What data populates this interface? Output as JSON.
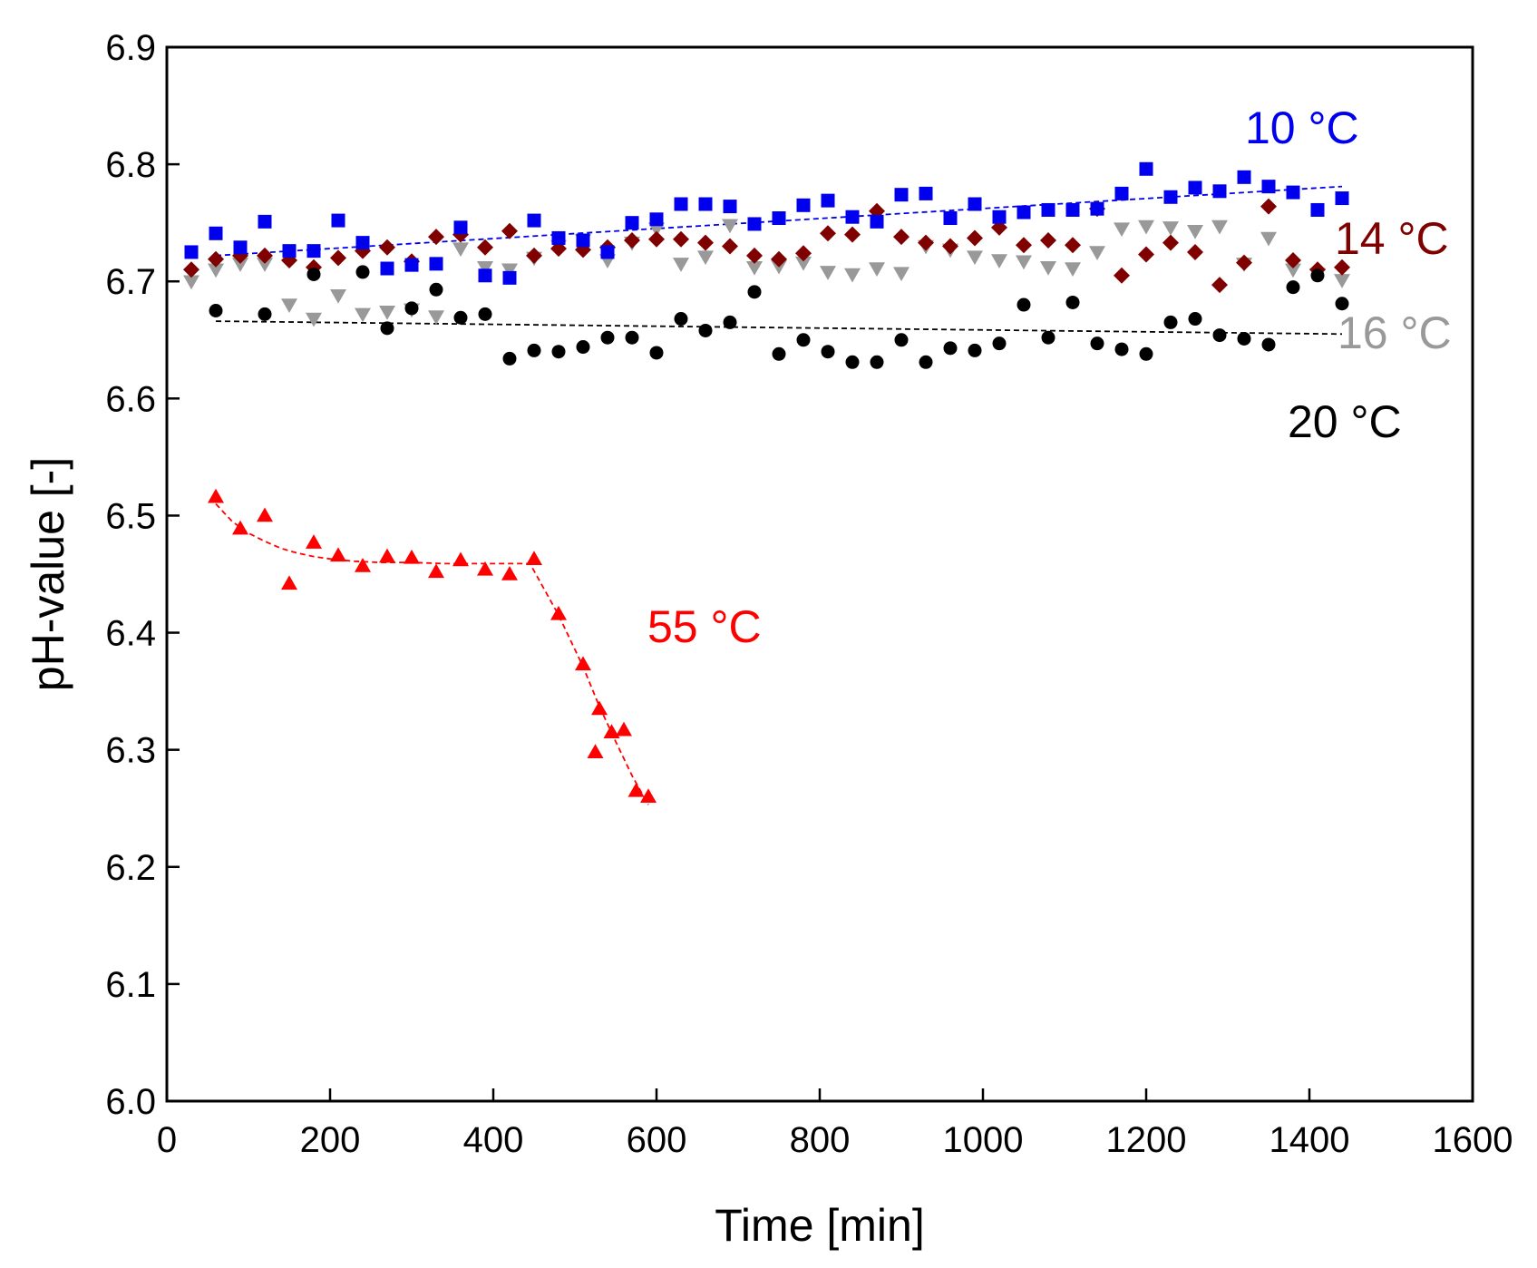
{
  "chart_data": {
    "type": "scatter",
    "title": "",
    "xlabel": "Time [min]",
    "ylabel": "pH-value [-]",
    "xlim": [
      0,
      1600
    ],
    "ylim": [
      6.0,
      6.9
    ],
    "xticks": [
      0,
      200,
      400,
      600,
      800,
      1000,
      1200,
      1400,
      1600
    ],
    "yticks": [
      6.0,
      6.1,
      6.2,
      6.3,
      6.4,
      6.5,
      6.6,
      6.7,
      6.8,
      6.9
    ],
    "grid": false,
    "legend": "direct labels beside each series",
    "series": [
      {
        "name": "10 °C",
        "color": "#0000ee",
        "marker": "square",
        "x": [
          30,
          60,
          90,
          120,
          150,
          180,
          210,
          240,
          270,
          300,
          330,
          360,
          390,
          420,
          450,
          480,
          510,
          540,
          570,
          600,
          630,
          660,
          690,
          720,
          750,
          780,
          810,
          840,
          870,
          900,
          930,
          960,
          990,
          1020,
          1050,
          1080,
          1110,
          1140,
          1170,
          1200,
          1230,
          1260,
          1290,
          1320,
          1350,
          1380,
          1410,
          1440
        ],
        "y": [
          6.725,
          6.741,
          6.729,
          6.751,
          6.726,
          6.726,
          6.752,
          6.733,
          6.711,
          6.714,
          6.715,
          6.746,
          6.705,
          6.703,
          6.752,
          6.737,
          6.735,
          6.725,
          6.75,
          6.753,
          6.766,
          6.766,
          6.764,
          6.749,
          6.754,
          6.765,
          6.769,
          6.755,
          6.751,
          6.774,
          6.775,
          6.754,
          6.766,
          6.755,
          6.759,
          6.761,
          6.761,
          6.762,
          6.775,
          6.796,
          6.772,
          6.78,
          6.777,
          6.789,
          6.781,
          6.776,
          6.761,
          6.771
        ],
        "trend": {
          "x": [
            60,
            1440
          ],
          "y": [
            6.722,
            6.781
          ]
        }
      },
      {
        "name": "14 °C",
        "color": "#800000",
        "marker": "diamond",
        "x": [
          30,
          60,
          90,
          120,
          150,
          180,
          210,
          240,
          270,
          300,
          330,
          360,
          390,
          420,
          450,
          480,
          510,
          540,
          570,
          600,
          630,
          660,
          690,
          720,
          750,
          780,
          810,
          840,
          870,
          900,
          930,
          960,
          990,
          1020,
          1050,
          1080,
          1110,
          1140,
          1170,
          1200,
          1230,
          1260,
          1290,
          1320,
          1350,
          1380,
          1410,
          1440
        ],
        "y": [
          6.71,
          6.719,
          6.722,
          6.722,
          6.718,
          6.712,
          6.72,
          6.726,
          6.729,
          6.717,
          6.738,
          6.74,
          6.729,
          6.743,
          6.722,
          6.728,
          6.727,
          6.729,
          6.735,
          6.736,
          6.736,
          6.733,
          6.73,
          6.722,
          6.719,
          6.724,
          6.741,
          6.74,
          6.76,
          6.738,
          6.733,
          6.73,
          6.737,
          6.746,
          6.731,
          6.735,
          6.731,
          6.762,
          6.705,
          6.723,
          6.733,
          6.725,
          6.697,
          6.716,
          6.764,
          6.718,
          6.71,
          6.712
        ]
      },
      {
        "name": "16 °C",
        "color": "#999999",
        "marker": "triangle-down",
        "x": [
          30,
          60,
          90,
          120,
          150,
          180,
          210,
          240,
          270,
          300,
          330,
          360,
          390,
          420,
          450,
          480,
          510,
          540,
          570,
          600,
          630,
          660,
          690,
          720,
          750,
          780,
          810,
          840,
          870,
          900,
          930,
          960,
          990,
          1020,
          1050,
          1080,
          1110,
          1140,
          1170,
          1200,
          1230,
          1260,
          1290,
          1320,
          1350,
          1380,
          1410,
          1440
        ],
        "y": [
          6.7,
          6.71,
          6.715,
          6.715,
          6.68,
          6.668,
          6.688,
          6.672,
          6.674,
          6.676,
          6.67,
          6.728,
          6.712,
          6.71,
          6.72,
          6.73,
          6.735,
          6.718,
          6.733,
          6.745,
          6.715,
          6.721,
          6.748,
          6.712,
          6.713,
          6.716,
          6.708,
          6.706,
          6.711,
          6.707,
          6.73,
          6.727,
          6.721,
          6.718,
          6.717,
          6.712,
          6.711,
          6.725,
          6.745,
          6.747,
          6.746,
          6.743,
          6.747,
          6.715,
          6.737,
          6.71,
          6.706,
          6.701
        ]
      },
      {
        "name": "20 °C",
        "color": "#000000",
        "marker": "circle",
        "x": [
          60,
          120,
          180,
          240,
          270,
          300,
          330,
          360,
          390,
          420,
          450,
          480,
          510,
          540,
          570,
          600,
          630,
          660,
          690,
          720,
          750,
          780,
          810,
          840,
          870,
          900,
          930,
          960,
          990,
          1020,
          1050,
          1080,
          1110,
          1140,
          1170,
          1200,
          1230,
          1260,
          1290,
          1320,
          1350,
          1380,
          1410,
          1440
        ],
        "y": [
          6.675,
          6.672,
          6.706,
          6.708,
          6.66,
          6.677,
          6.693,
          6.669,
          6.672,
          6.634,
          6.641,
          6.64,
          6.644,
          6.652,
          6.652,
          6.639,
          6.668,
          6.658,
          6.665,
          6.691,
          6.638,
          6.65,
          6.64,
          6.631,
          6.631,
          6.65,
          6.631,
          6.643,
          6.641,
          6.647,
          6.68,
          6.652,
          6.682,
          6.647,
          6.642,
          6.638,
          6.665,
          6.668,
          6.654,
          6.651,
          6.646,
          6.695,
          6.705,
          6.681
        ],
        "trend": {
          "x": [
            60,
            1440
          ],
          "y": [
            6.666,
            6.655
          ]
        }
      },
      {
        "name": "55 °C",
        "color": "#ff0000",
        "marker": "triangle-up",
        "x": [
          60,
          90,
          120,
          150,
          180,
          210,
          240,
          270,
          300,
          330,
          360,
          390,
          420,
          450,
          480,
          510,
          525,
          530,
          545,
          560,
          575,
          590
        ],
        "y": [
          6.516,
          6.489,
          6.5,
          6.442,
          6.477,
          6.466,
          6.457,
          6.465,
          6.464,
          6.452,
          6.462,
          6.454,
          6.45,
          6.463,
          6.416,
          6.373,
          6.298,
          6.335,
          6.315,
          6.317,
          6.265,
          6.26
        ],
        "trend": {
          "x": [
            60,
            80,
            100,
            120,
            140,
            160,
            180,
            200,
            230,
            260,
            300,
            340,
            380,
            420,
            445,
            480,
            510,
            530,
            550,
            570,
            590
          ],
          "y": [
            6.51,
            6.495,
            6.485,
            6.478,
            6.472,
            6.468,
            6.465,
            6.463,
            6.461,
            6.46,
            6.46,
            6.459,
            6.459,
            6.459,
            6.459,
            6.415,
            6.371,
            6.337,
            6.307,
            6.278,
            6.253
          ]
        }
      }
    ]
  }
}
